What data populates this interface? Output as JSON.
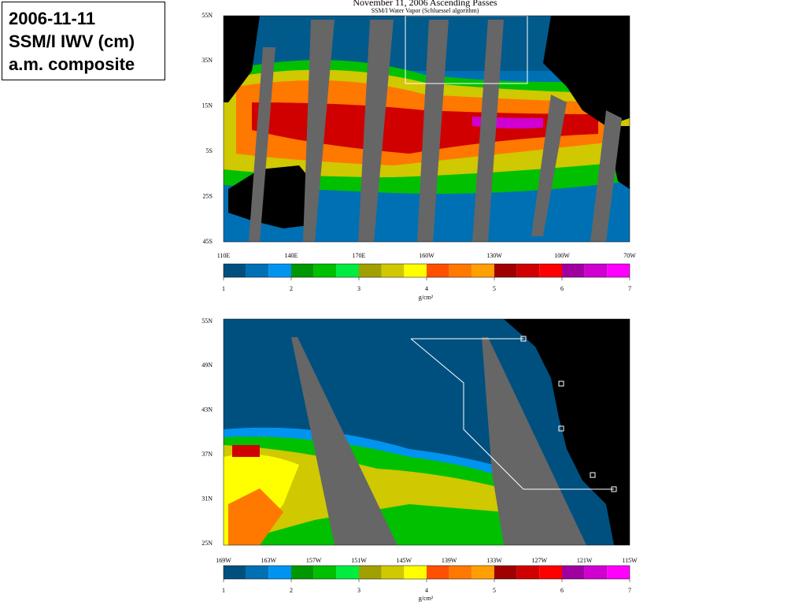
{
  "label_box": {
    "lines": [
      "2006-11-11",
      "SSM/I IWV (cm)",
      "a.m. composite"
    ]
  },
  "top_map": {
    "title": "November 11, 2006  Ascending Passes",
    "subtitle": "SSM/I Water Vapor (Schluessel algorithm)",
    "lat_labels": [
      "55N",
      "35N",
      "15N",
      "5S",
      "25S",
      "45S"
    ],
    "lon_labels": [
      "110E",
      "140E",
      "170E",
      "160W",
      "130W",
      "100W",
      "70W"
    ]
  },
  "bottom_map": {
    "lat_labels": [
      "55N",
      "49N",
      "43N",
      "37N",
      "31N",
      "25N"
    ],
    "lon_labels": [
      "169W",
      "163W",
      "157W",
      "151W",
      "145W",
      "139W",
      "133W",
      "127W",
      "121W",
      "115W"
    ]
  },
  "colorbar": {
    "ticks": [
      1,
      2,
      3,
      4,
      5,
      6,
      7
    ],
    "unit": "g/cm²",
    "colors": [
      "#00507f",
      "#0070b4",
      "#0094f0",
      "#009800",
      "#00c000",
      "#00ec40",
      "#a0a000",
      "#d0c800",
      "#ffff00",
      "#ff5000",
      "#ff7800",
      "#ffa000",
      "#a00000",
      "#d00000",
      "#ff0000",
      "#a000a0",
      "#d000d0",
      "#ff00ff"
    ]
  }
}
